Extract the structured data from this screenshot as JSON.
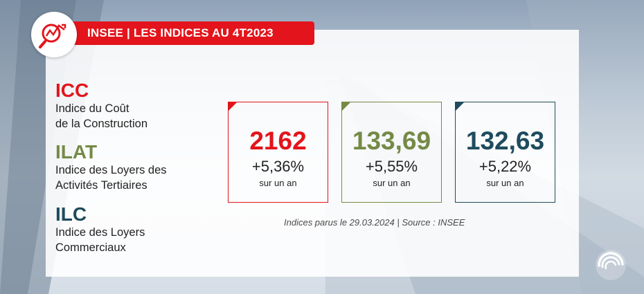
{
  "header": {
    "title": "INSEE | LES INDICES AU 4T2023"
  },
  "icons": {
    "badge": "chart-magnifier-icon",
    "logo": "swirl-logo-icon"
  },
  "colors": {
    "red": "#e3141b",
    "olive": "#758a47",
    "navy": "#1f4b5e"
  },
  "indices": [
    {
      "abbr": "ICC",
      "desc_line1": "Indice du Coût",
      "desc_line2": "de la Construction"
    },
    {
      "abbr": "ILAT",
      "desc_line1": "Indice des Loyers des",
      "desc_line2": "Activités Tertiaires"
    },
    {
      "abbr": "ILC",
      "desc_line1": "Indice des Loyers",
      "desc_line2": "Commerciaux"
    }
  ],
  "cards": [
    {
      "value": "2162",
      "change": "+5,36%",
      "period": "sur un an"
    },
    {
      "value": "133,69",
      "change": "+5,55%",
      "period": "sur un an"
    },
    {
      "value": "132,63",
      "change": "+5,22%",
      "period": "sur un an"
    }
  ],
  "source": "Indices parus le 29.03.2024 | Source : INSEE"
}
